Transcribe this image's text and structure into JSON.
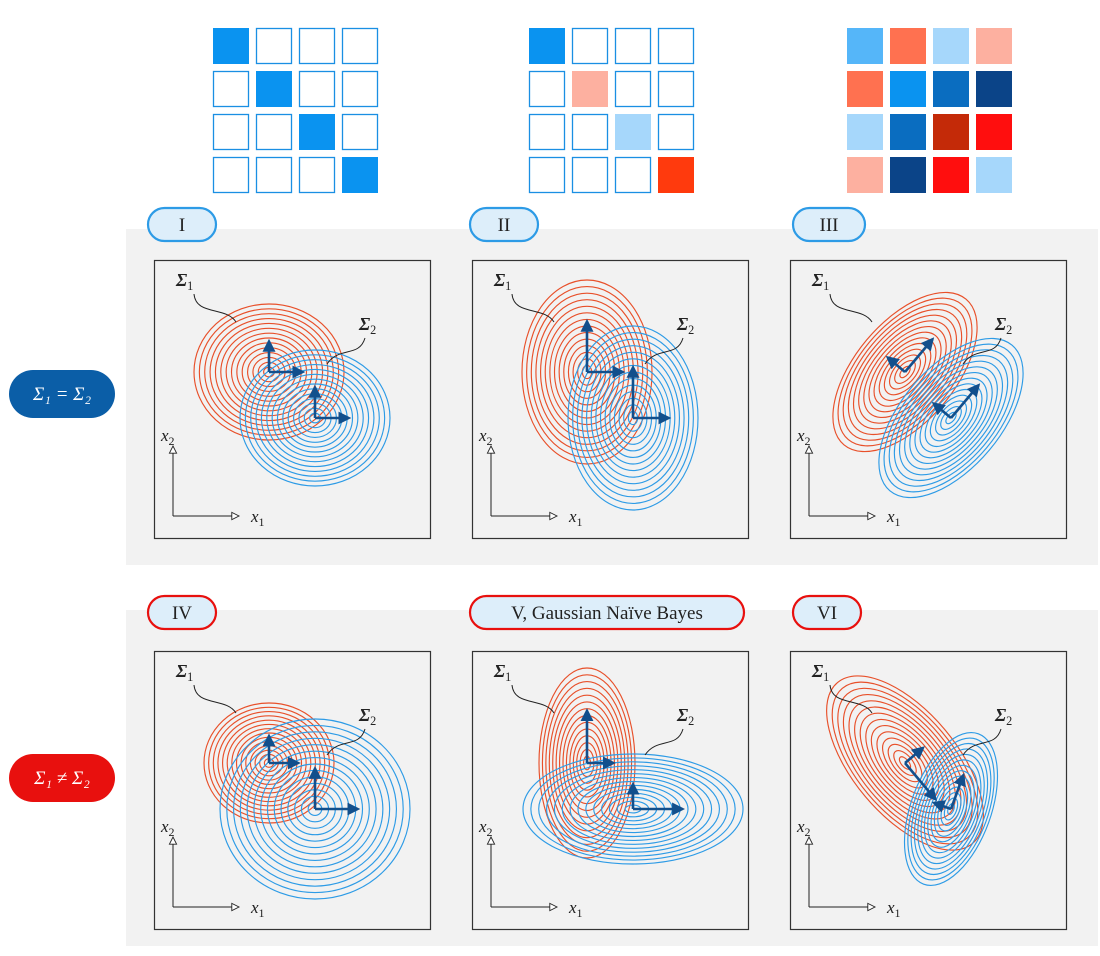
{
  "colors": {
    "red_contour": "#e8502a",
    "blue_contour": "#2d9be6",
    "arrow": "#124f8c",
    "pill_blue": "#2d9be6",
    "pill_red": "#e8100e",
    "side_blue": "#0b5ea7",
    "side_red": "#e8100e",
    "panel_bg": "#f2f2f2",
    "matrix_border": "#1a8fe3"
  },
  "matrices": [
    {
      "name": "diagonal-equal-variance",
      "cells": [
        "#0a93f0",
        "",
        "",
        "",
        "",
        "#0a93f0",
        "",
        "",
        "",
        "",
        "#0a93f0",
        "",
        "",
        "",
        "",
        "#0a93f0"
      ]
    },
    {
      "name": "diagonal-different-variance",
      "cells": [
        "#0a93f0",
        "",
        "",
        "",
        "",
        "#fdb0a0",
        "",
        "",
        "",
        "",
        "#a6d7fb",
        "",
        "",
        "",
        "",
        "#ff3a0d"
      ]
    },
    {
      "name": "full-covariance",
      "cells": [
        "#55b6f9",
        "#ff7150",
        "#a6d7fb",
        "#fdb0a0",
        "#ff7150",
        "#0a93f0",
        "#0a6dc0",
        "#0b4488",
        "#a6d7fb",
        "#0a6dc0",
        "#c42a08",
        "#ff0e0e",
        "#fdb0a0",
        "#0b4488",
        "#ff0e0e",
        "#a6d7fb"
      ]
    }
  ],
  "rows": [
    {
      "condition": "Σ₁ = Σ₂",
      "color_key": "blue"
    },
    {
      "condition": "Σ₁ ≠ Σ₂",
      "color_key": "red"
    }
  ],
  "panels": [
    {
      "label": "I",
      "row": 0,
      "sigma1": {
        "cx": 0,
        "cy": 0,
        "rx": 75,
        "ry": 68,
        "ang": 0
      },
      "sigma2": {
        "cx": 46,
        "cy": 46,
        "rx": 75,
        "ry": 68,
        "ang": 0
      }
    },
    {
      "label": "II",
      "row": 0,
      "sigma1": {
        "cx": 0,
        "cy": 0,
        "rx": 65,
        "ry": 92,
        "ang": 0
      },
      "sigma2": {
        "cx": 46,
        "cy": 46,
        "rx": 65,
        "ry": 92,
        "ang": 0
      }
    },
    {
      "label": "III",
      "row": 0,
      "sigma1": {
        "cx": 0,
        "cy": 0,
        "rx": 95,
        "ry": 50,
        "ang": -50
      },
      "sigma2": {
        "cx": 46,
        "cy": 46,
        "rx": 95,
        "ry": 50,
        "ang": -50
      }
    },
    {
      "label": "IV",
      "row": 1,
      "sigma1": {
        "cx": 0,
        "cy": 0,
        "rx": 65,
        "ry": 60,
        "ang": 0
      },
      "sigma2": {
        "cx": 46,
        "cy": 46,
        "rx": 95,
        "ry": 90,
        "ang": 0
      }
    },
    {
      "label": "V, Gaussian Naïve Bayes",
      "row": 1,
      "sigma1": {
        "cx": 0,
        "cy": 0,
        "rx": 48,
        "ry": 95,
        "ang": 0
      },
      "sigma2": {
        "cx": 46,
        "cy": 46,
        "rx": 110,
        "ry": 55,
        "ang": 0
      }
    },
    {
      "label": "VI",
      "row": 1,
      "sigma1": {
        "cx": 0,
        "cy": 0,
        "rx": 105,
        "ry": 52,
        "ang": 50
      },
      "sigma2": {
        "cx": 46,
        "cy": 46,
        "rx": 80,
        "ry": 40,
        "ang": -70
      }
    }
  ],
  "labels": {
    "sigma1": "Σ",
    "sigma1_sub": "1",
    "sigma2": "Σ",
    "sigma2_sub": "2",
    "x1": "x",
    "x1_sub": "1",
    "x2": "x",
    "x2_sub": "2"
  }
}
